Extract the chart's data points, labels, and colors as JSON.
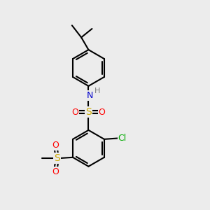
{
  "bg_color": "#ececec",
  "atom_colors": {
    "C": "#000000",
    "H": "#7a7a7a",
    "N": "#0000cc",
    "O": "#ff0000",
    "S": "#ccaa00",
    "Cl": "#00aa00"
  },
  "bond_color": "#000000",
  "bond_width": 1.5
}
